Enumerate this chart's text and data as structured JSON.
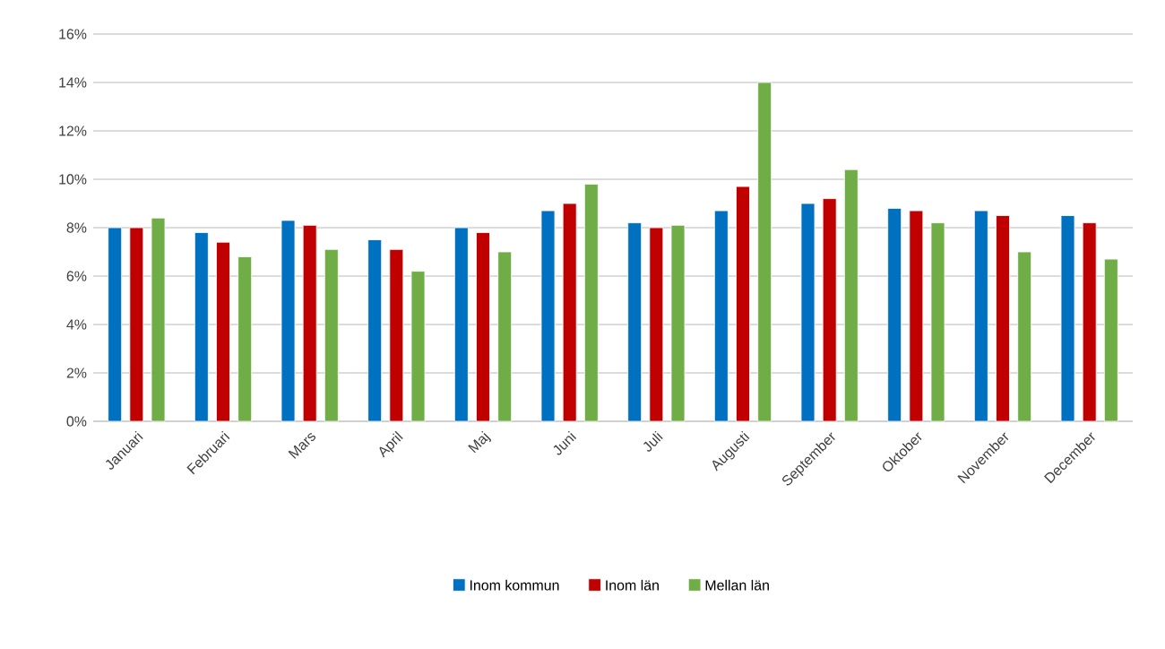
{
  "chart_data": {
    "type": "bar",
    "categories": [
      "Januari",
      "Februari",
      "Mars",
      "April",
      "Maj",
      "Juni",
      "Juli",
      "Augusti",
      "September",
      "Oktober",
      "November",
      "December"
    ],
    "series": [
      {
        "name": "Inom kommun",
        "color": "#0070c0",
        "values": [
          8.0,
          7.8,
          8.3,
          7.5,
          8.0,
          8.7,
          8.2,
          8.7,
          9.0,
          8.8,
          8.7,
          8.5
        ]
      },
      {
        "name": "Inom län",
        "color": "#c00000",
        "values": [
          8.0,
          7.4,
          8.1,
          7.1,
          7.8,
          9.0,
          8.0,
          9.7,
          9.2,
          8.7,
          8.5,
          8.2
        ]
      },
      {
        "name": "Mellan län",
        "color": "#70ad47",
        "values": [
          8.4,
          6.8,
          7.1,
          6.2,
          7.0,
          9.8,
          8.1,
          14.0,
          10.4,
          8.2,
          7.0,
          6.7
        ]
      }
    ],
    "ylim": [
      0,
      16
    ],
    "yticks": [
      {
        "value": 0,
        "label": "0%"
      },
      {
        "value": 2,
        "label": "2%"
      },
      {
        "value": 4,
        "label": "4%"
      },
      {
        "value": 6,
        "label": "6%"
      },
      {
        "value": 8,
        "label": "8%"
      },
      {
        "value": 10,
        "label": "10%"
      },
      {
        "value": 12,
        "label": "12%"
      },
      {
        "value": 14,
        "label": "14%"
      },
      {
        "value": 16,
        "label": "16%"
      }
    ],
    "grid": "y",
    "legend": "bottom"
  }
}
